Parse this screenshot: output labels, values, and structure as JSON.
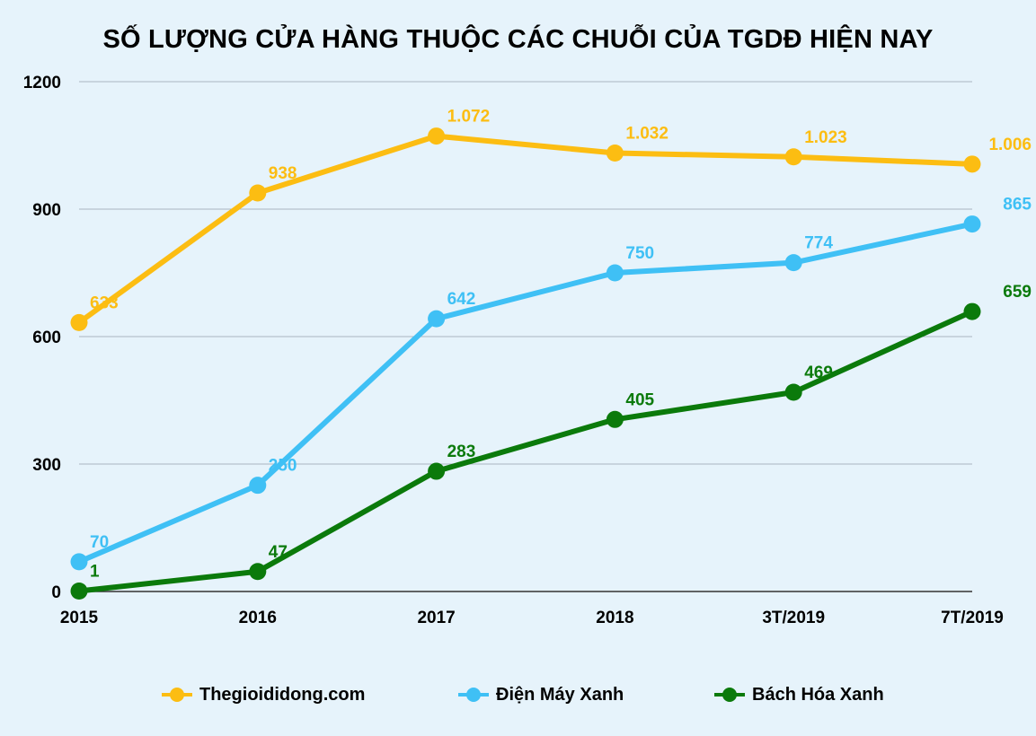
{
  "chart_data": {
    "type": "line",
    "title": "SỐ LƯỢNG CỬA HÀNG THUỘC CÁC CHUỖI CỦA TGDĐ HIỆN NAY",
    "categories": [
      "2015",
      "2016",
      "2017",
      "2018",
      "3T/2019",
      "7T/2019"
    ],
    "y_ticks": [
      "0",
      "300",
      "600",
      "900",
      "1200"
    ],
    "ylim": [
      0,
      1200
    ],
    "grid": true,
    "legend_position": "bottom",
    "series": [
      {
        "name": "Thegioididong.com",
        "color": "#fcbd12",
        "values": [
          633,
          938,
          1072,
          1032,
          1023,
          1006
        ],
        "labels": [
          "633",
          "938",
          "1.072",
          "1.032",
          "1.023",
          "1.006"
        ]
      },
      {
        "name": "Điện Máy Xanh",
        "color": "#3fc0f5",
        "values": [
          70,
          250,
          642,
          750,
          774,
          865
        ],
        "labels": [
          "70",
          "250",
          "642",
          "750",
          "774",
          "865"
        ]
      },
      {
        "name": "Bách Hóa Xanh",
        "color": "#0b7a0b",
        "values": [
          1,
          47,
          283,
          405,
          469,
          659
        ],
        "labels": [
          "1",
          "47",
          "283",
          "405",
          "469",
          "659"
        ]
      }
    ]
  }
}
